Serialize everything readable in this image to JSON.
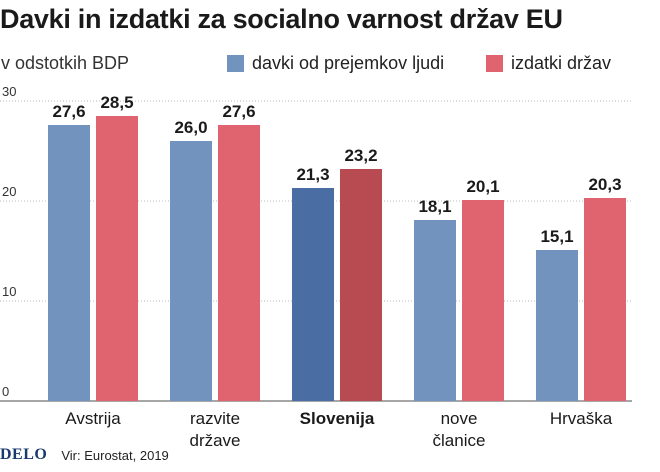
{
  "header": {
    "title": "Davki in izdatki za socialno varnost držav EU",
    "subtitle": "v odstotkih BDP"
  },
  "footer": {
    "logo": "DELO",
    "source": "Vir: Eurostat, 2019"
  },
  "colors": {
    "series_a": "#7393bf",
    "series_b": "#e0646f",
    "series_a_highlight": "#4a6ea3",
    "series_b_highlight": "#b84a52",
    "grid": "#bbbbbb"
  },
  "chart_data": {
    "type": "bar",
    "title": "Davki in izdatki za socialno varnost držav EU",
    "subtitle": "v odstotkih BDP",
    "categories": [
      [
        "Avstrija"
      ],
      [
        "razvite",
        "države"
      ],
      [
        "Slovenija"
      ],
      [
        "nove",
        "članice"
      ],
      [
        "Hrvaška"
      ]
    ],
    "highlight_category": 2,
    "series": [
      {
        "name": "davki od prejemkov ljudi",
        "values": [
          27.6,
          26.0,
          21.3,
          18.1,
          15.1
        ],
        "labels": [
          "27,6",
          "26,0",
          "21,3",
          "18,1",
          "15,1"
        ]
      },
      {
        "name": "izdatki držav",
        "values": [
          28.5,
          27.6,
          23.2,
          20.1,
          20.3
        ],
        "labels": [
          "28,5",
          "27,6",
          "23,2",
          "20,1",
          "20,3"
        ]
      }
    ],
    "ylim": [
      0,
      30
    ],
    "yticks": [
      "0",
      "10",
      "20",
      "30"
    ],
    "grid": true,
    "legend_position": "top-right"
  }
}
